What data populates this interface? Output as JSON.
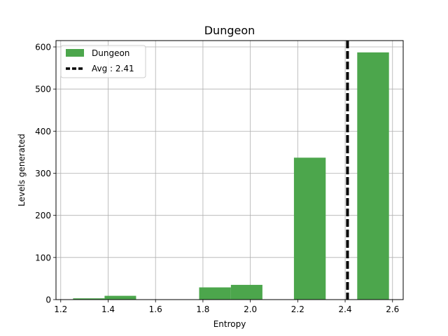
{
  "chart_data": {
    "type": "bar",
    "title": "Dungeon",
    "xlabel": "Entropy",
    "ylabel": "Levels generated",
    "xlim": [
      1.18,
      2.645
    ],
    "ylim": [
      0,
      615
    ],
    "grid": true,
    "legend_placement": "top-left",
    "x_ticks": [
      1.2,
      1.4,
      1.6,
      1.8,
      2.0,
      2.2,
      2.4,
      2.6
    ],
    "x_tick_labels": [
      "1.2",
      "1.4",
      "1.6",
      "1.8",
      "2.0",
      "2.2",
      "2.4",
      "2.6"
    ],
    "y_ticks": [
      0,
      100,
      200,
      300,
      400,
      500,
      600
    ],
    "y_tick_labels": [
      "0",
      "100",
      "200",
      "300",
      "400",
      "500",
      "600"
    ],
    "series": [
      {
        "name": "Dungeon",
        "color": "#4ca64c",
        "bars": [
          {
            "x_start": 1.252,
            "x_end": 1.385,
            "value": 3
          },
          {
            "x_start": 1.385,
            "x_end": 1.518,
            "value": 9
          },
          {
            "x_start": 1.784,
            "x_end": 1.918,
            "value": 29
          },
          {
            "x_start": 1.918,
            "x_end": 2.051,
            "value": 35
          },
          {
            "x_start": 2.184,
            "x_end": 2.318,
            "value": 337
          },
          {
            "x_start": 2.451,
            "x_end": 2.585,
            "value": 587
          }
        ]
      }
    ],
    "average": {
      "value": 2.41,
      "label": "Avg : 2.41",
      "color": "#000000",
      "style": "dashed"
    }
  }
}
